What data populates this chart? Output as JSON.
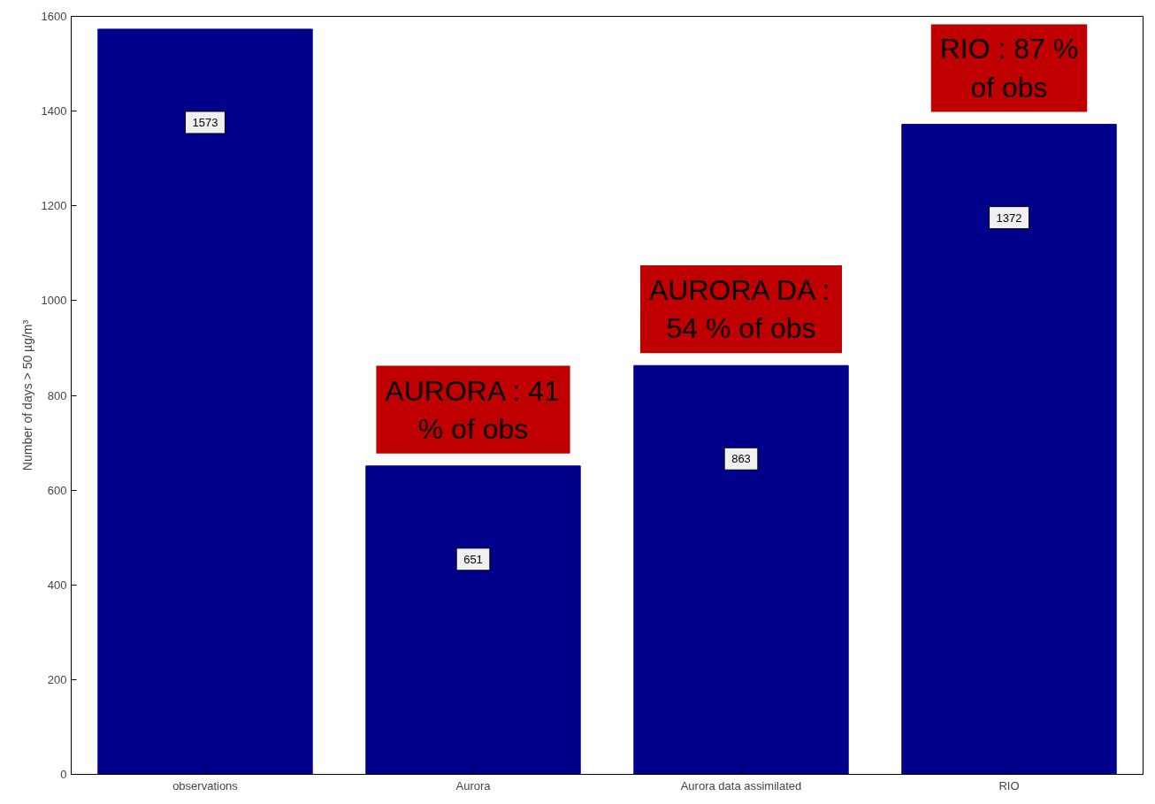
{
  "chart_data": {
    "type": "bar",
    "ylabel": "Number of days > 50 µg/m³",
    "categories": [
      "observations",
      "Aurora",
      "Aurora data assimilated",
      "RIO"
    ],
    "values": [
      1573,
      651,
      863,
      1372
    ],
    "color": "#00008b",
    "data_labels": true,
    "grid": false,
    "ylim": [
      0,
      1600
    ],
    "yticks": [
      0,
      200,
      400,
      600,
      800,
      1000,
      1200,
      1400,
      1600
    ],
    "annotations": [
      {
        "text": "AURORA : 41\n% of obs",
        "x": "Aurora",
        "y": 651
      },
      {
        "text": "AURORA DA :\n54 % of obs",
        "x": "Aurora data assimilated",
        "y": 863
      },
      {
        "text": "RIO : 87 %\nof obs",
        "x": "RIO",
        "y": 1372
      }
    ]
  }
}
